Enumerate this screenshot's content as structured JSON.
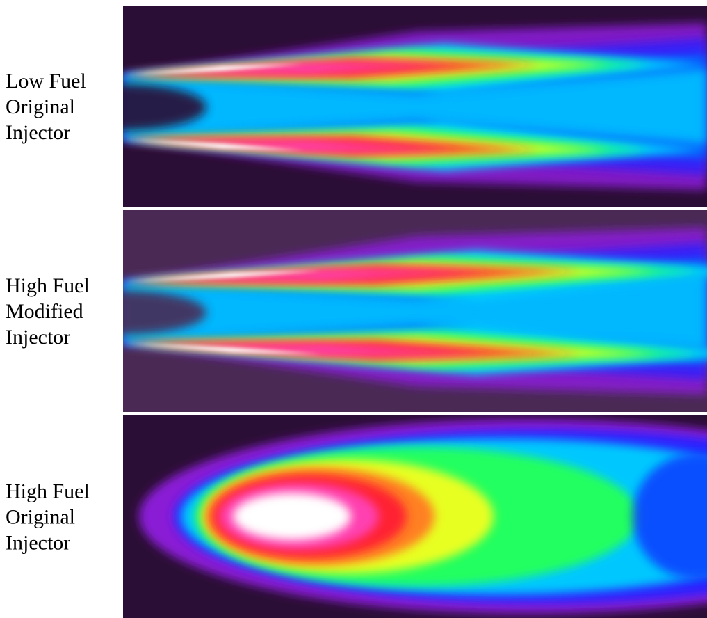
{
  "panels": [
    {
      "label": [
        "Low Fuel",
        "Original",
        "Injector"
      ]
    },
    {
      "label": [
        "High Fuel",
        "Modified",
        "Injector"
      ]
    },
    {
      "label": [
        "High Fuel",
        "Original",
        "Injector"
      ]
    }
  ]
}
